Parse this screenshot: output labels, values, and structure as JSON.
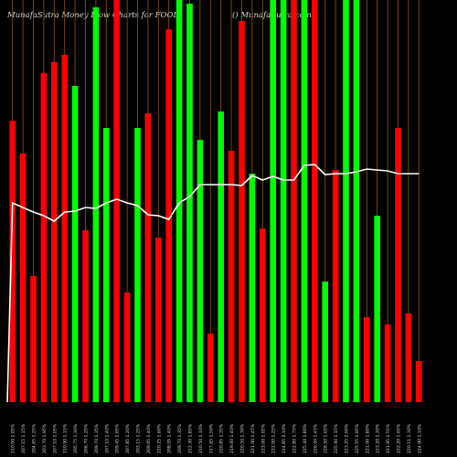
{
  "header": {
    "left": "MunafaSutra Money Flow  Charts for FOOD",
    "right": "() MunafaSutra.com"
  },
  "colors": {
    "background": "#000000",
    "up": "#00ff00",
    "down": "#ff0000",
    "grid": "#8a5a10",
    "line": "#ffffff",
    "text": "#dddddd"
  },
  "chart_data": {
    "type": "bar",
    "title": "MunafaSutra Money Flow  Charts for FOOD",
    "ylim": [
      0,
      440
    ],
    "grid": "vertical",
    "categories": [
      "210.00 1.05%",
      "207.15 1.15%",
      "204.65 1.25%",
      "203.70 1.95%",
      "207.10 1.05%",
      "210.90 1.15%",
      "205.75 1.30%",
      "206.70 1.25%",
      "209.70 1.35%",
      "207.10 1.40%",
      "209.45 1.05%",
      "207.85 1.20%",
      "203.15 1.25%",
      "209.65 1.40%",
      "210.25 1.60%",
      "208.05 1.40%",
      "209.70 1.35%",
      "212.30 1.85%",
      "210.50 1.10%",
      "217.65 1.50%",
      "220.85 1.35%",
      "219.00 1.40%",
      "220.50 1.30%",
      "221.00 1.45%",
      "223.00 1.05%",
      "222.00 1.25%",
      "224.85 2.10%",
      "222.80 1.75%",
      "225.40 1.80%",
      "226.00 1.45%",
      "226.50 1.65%",
      "225.90 1.15%",
      "223.25 2.00%",
      "225.55 1.95%",
      "221.00 1.80%",
      "223.20 1.30%",
      "221.95 1.55%",
      "222.20 1.65%",
      "220.11 1.30%",
      "224.90 1.10%"
    ],
    "series": [
      {
        "values": [
          308,
          272,
          138,
          360,
          372,
          380,
          346,
          188,
          432,
          300,
          440,
          120,
          300,
          316,
          180,
          408,
          440,
          436,
          287,
          75,
          318,
          275,
          417,
          250,
          190,
          440,
          440,
          440,
          440,
          440,
          132,
          254,
          440,
          440,
          93,
          204,
          85,
          300,
          97,
          45
        ],
        "colors": [
          "down",
          "down",
          "down",
          "down",
          "down",
          "down",
          "up",
          "down",
          "up",
          "up",
          "down",
          "down",
          "up",
          "down",
          "down",
          "down",
          "up",
          "up",
          "up",
          "down",
          "up",
          "down",
          "down",
          "up",
          "down",
          "up",
          "up",
          "down",
          "up",
          "down",
          "up",
          "down",
          "up",
          "up",
          "down",
          "up",
          "down",
          "down",
          "down",
          "down"
        ]
      }
    ],
    "line": [
      222,
      227,
      232,
      236,
      242,
      232,
      231,
      227,
      228,
      222,
      218,
      222,
      225,
      235,
      236,
      240,
      222,
      215,
      202,
      202,
      202,
      202,
      203,
      192,
      197,
      193,
      197,
      197,
      181,
      180,
      191,
      190,
      190,
      188,
      185,
      186,
      187,
      190,
      190,
      190
    ]
  }
}
